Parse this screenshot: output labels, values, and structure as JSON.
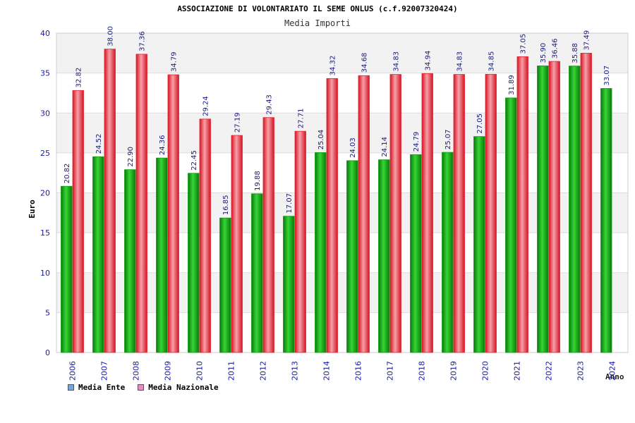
{
  "chart_data": {
    "type": "bar",
    "title": "ASSOCIAZIONE DI VOLONTARIATO IL SEME ONLUS (c.f.92007320424)",
    "subtitle": "Media Importi",
    "xlabel": "Anno",
    "ylabel": "Euro",
    "ylim": [
      0,
      40
    ],
    "yticks": [
      0,
      5,
      10,
      15,
      20,
      25,
      30,
      35,
      40
    ],
    "ytick_labels": [
      "0",
      "5",
      "10",
      "15",
      "20",
      "25",
      "30",
      "35",
      "40"
    ],
    "categories": [
      "2006",
      "2007",
      "2008",
      "2009",
      "2010",
      "2011",
      "2012",
      "2013",
      "2014",
      "2016",
      "2017",
      "2018",
      "2019",
      "2020",
      "2021",
      "2022",
      "2023",
      "2024"
    ],
    "series": [
      {
        "name": "Media Ente",
        "color": "#109e10",
        "legend_color": "#6fa7e6",
        "values": [
          20.82,
          24.52,
          22.9,
          24.36,
          22.45,
          16.85,
          19.88,
          17.07,
          25.04,
          24.03,
          24.14,
          24.79,
          25.07,
          27.05,
          31.89,
          35.9,
          35.88,
          33.07
        ],
        "labels": [
          "20.82",
          "24.52",
          "22.90",
          "24.36",
          "22.45",
          "16.85",
          "19.88",
          "17.07",
          "25.04",
          "24.03",
          "24.14",
          "24.79",
          "25.07",
          "27.05",
          "31.89",
          "35.90",
          "35.88",
          "33.07"
        ]
      },
      {
        "name": "Media Nazionale",
        "color": "#e8232f",
        "legend_color": "#e88bbf",
        "values": [
          32.82,
          38.0,
          37.36,
          34.79,
          29.24,
          27.19,
          29.43,
          27.71,
          34.32,
          34.68,
          34.83,
          34.94,
          34.83,
          34.85,
          37.05,
          36.46,
          37.49,
          null
        ],
        "labels": [
          "32.82",
          "38.00",
          "37.36",
          "34.79",
          "29.24",
          "27.19",
          "29.43",
          "27.71",
          "34.32",
          "34.68",
          "34.83",
          "34.94",
          "34.83",
          "34.85",
          "37.05",
          "36.46",
          "37.49",
          ""
        ]
      }
    ],
    "legend_position": "bottom-left",
    "grid": true
  }
}
